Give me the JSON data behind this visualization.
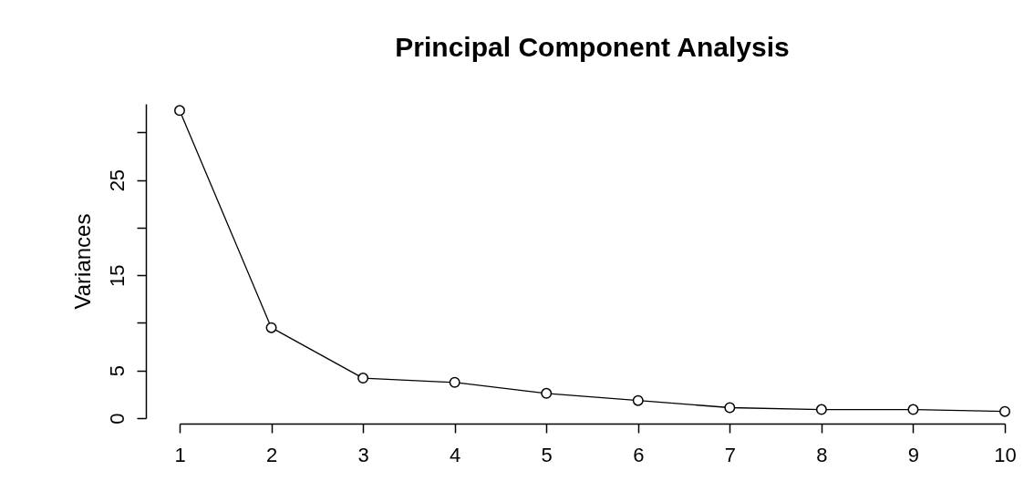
{
  "chart_data": {
    "type": "line",
    "title": "Principal Component Analysis",
    "ylabel": "Variances",
    "categories": [
      "1",
      "2",
      "3",
      "4",
      "5",
      "6",
      "7",
      "8",
      "9",
      "10"
    ],
    "values": [
      32.3,
      9.5,
      4.2,
      3.75,
      2.6,
      1.85,
      1.1,
      0.9,
      0.9,
      0.7
    ],
    "color": "#000000",
    "marker": "circle",
    "line_style": "solid",
    "grid": false,
    "ylim": [
      0,
      33
    ],
    "yticks": [
      0,
      5,
      {
        "value": 10,
        "label": null
      },
      15,
      {
        "value": 20,
        "label": null
      },
      25,
      {
        "value": 30,
        "label": null
      }
    ]
  }
}
